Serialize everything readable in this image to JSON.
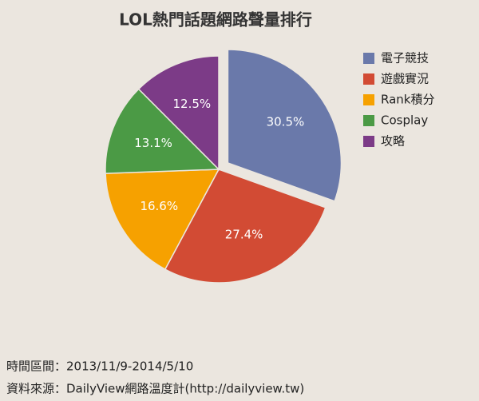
{
  "chart_data": {
    "type": "pie",
    "title": "LOL熱門話題網路聲量排行",
    "categories": [
      "電子競技",
      "遊戲實況",
      "Rank積分",
      "Cosplay",
      "攻略"
    ],
    "values": [
      30.5,
      27.4,
      16.6,
      13.1,
      12.5
    ],
    "value_labels": [
      "30.5%",
      "27.4%",
      "16.6%",
      "13.1%",
      "12.5%"
    ],
    "colors": [
      "#6a79aa",
      "#d24b34",
      "#f6a100",
      "#4b9a45",
      "#7c3b87"
    ],
    "exploded": [
      0
    ],
    "legend": "right",
    "footnotes": [
      "時間區間：2013/11/9-2014/5/10",
      "資料來源：DailyView網路溫度計(http://dailyview.tw)"
    ]
  }
}
